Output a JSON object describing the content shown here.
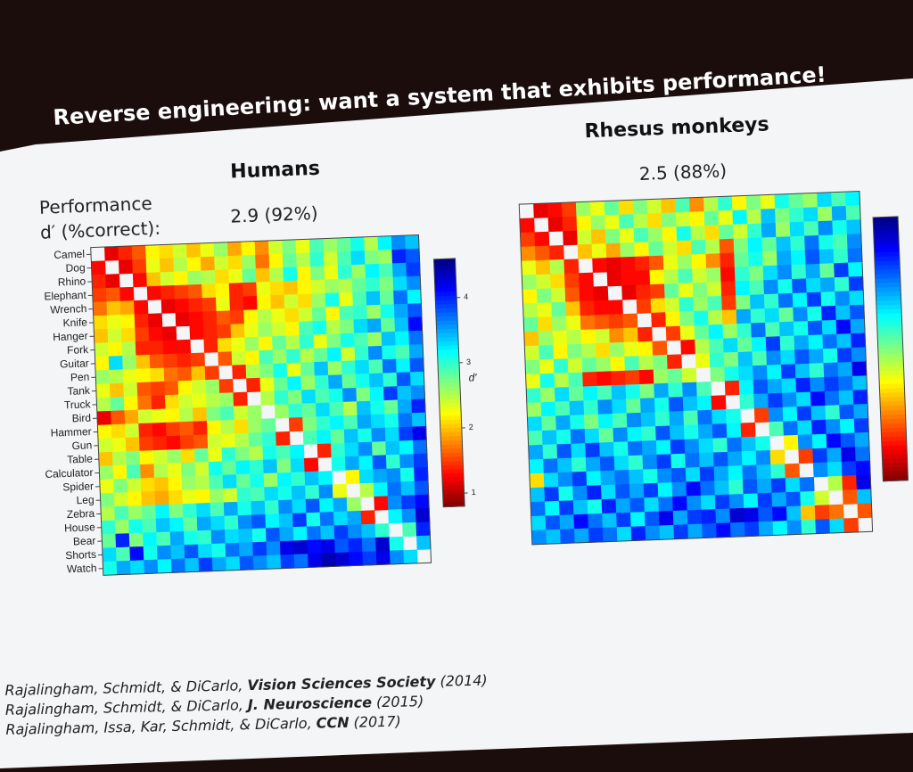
{
  "slide": {
    "title": "Reverse engineering: want a system that exhibits performance!",
    "performance_label": [
      "Performance",
      "d′ (%correct):"
    ],
    "references": [
      {
        "authors": "Rajalingham, Schmidt, & DiCarlo,",
        "venue": "Vision Sciences Society",
        "year": "(2014)"
      },
      {
        "authors": "Rajalingham, Schmidt, & DiCarlo,",
        "venue": "J. Neuroscience",
        "year": "(2015)"
      },
      {
        "authors": "Rajalingham, Issa, Kar, Schmidt, & DiCarlo,",
        "venue": "CCN",
        "year": "(2017)"
      }
    ]
  },
  "chart_data": [
    {
      "type": "heatmap",
      "title": "Humans",
      "subtitle": "2.9 (92%)",
      "categories": [
        "Camel",
        "Dog",
        "Rhino",
        "Elephant",
        "Wrench",
        "Knife",
        "Hanger",
        "Fork",
        "Guitar",
        "Pen",
        "Tank",
        "Truck",
        "Bird",
        "Hammer",
        "Gun",
        "Table",
        "Calculator",
        "Spider",
        "Leg",
        "Zebra",
        "House",
        "Bear",
        "Shorts",
        "Watch"
      ],
      "colormap": "jet_r",
      "clim": [
        0.8,
        4.6
      ],
      "colorbar": {
        "label": "d′",
        "ticks": [
          1,
          2,
          3,
          4
        ]
      },
      "values": [
        [
          null,
          1.2,
          1.4,
          1.6,
          2.2,
          2.1,
          2.4,
          2.0,
          2.3,
          2.6,
          1.9,
          2.2,
          1.8,
          2.4,
          2.7,
          2.3,
          2.9,
          2.6,
          2.8,
          3.1,
          2.5,
          3.2,
          3.6,
          3.4
        ],
        [
          1.3,
          null,
          1.2,
          1.5,
          2.3,
          2.0,
          2.5,
          2.2,
          1.9,
          2.4,
          2.1,
          2.6,
          1.7,
          2.2,
          2.8,
          2.5,
          3.0,
          2.4,
          2.9,
          3.3,
          2.7,
          2.6,
          4.0,
          3.8
        ],
        [
          1.4,
          1.2,
          null,
          1.3,
          2.0,
          2.4,
          2.2,
          2.6,
          2.5,
          2.1,
          2.3,
          2.8,
          2.0,
          2.5,
          3.1,
          2.2,
          2.7,
          2.3,
          3.0,
          2.6,
          3.2,
          2.9,
          3.5,
          3.9
        ],
        [
          1.5,
          1.6,
          1.3,
          null,
          1.3,
          1.4,
          1.5,
          1.6,
          2.1,
          2.2,
          1.4,
          1.5,
          2.3,
          2.1,
          2.0,
          2.2,
          2.4,
          2.6,
          2.5,
          2.8,
          3.0,
          2.7,
          3.3,
          3.6
        ],
        [
          1.7,
          2.0,
          1.9,
          1.3,
          null,
          1.2,
          1.3,
          1.4,
          1.5,
          2.3,
          1.4,
          1.3,
          2.2,
          2.0,
          2.4,
          2.1,
          2.6,
          3.1,
          2.3,
          2.9,
          3.4,
          2.8,
          3.7,
          3.2
        ],
        [
          2.1,
          2.3,
          2.2,
          1.4,
          1.2,
          null,
          1.2,
          1.3,
          1.4,
          1.6,
          1.5,
          2.2,
          2.5,
          2.3,
          2.1,
          2.4,
          2.8,
          2.2,
          2.9,
          3.0,
          2.6,
          3.1,
          3.5,
          3.8
        ],
        [
          2.0,
          2.4,
          2.1,
          1.5,
          1.3,
          1.2,
          null,
          1.3,
          1.4,
          1.5,
          2.0,
          2.3,
          2.6,
          2.4,
          2.2,
          2.9,
          3.1,
          2.5,
          2.7,
          3.3,
          3.5,
          2.8,
          3.4,
          4.1
        ],
        [
          2.4,
          2.2,
          2.5,
          1.4,
          1.4,
          1.3,
          1.3,
          null,
          1.4,
          2.1,
          2.3,
          2.6,
          2.2,
          2.8,
          2.5,
          3.0,
          2.3,
          2.7,
          3.1,
          2.9,
          2.6,
          3.4,
          3.2,
          3.7
        ],
        [
          2.2,
          3.3,
          2.6,
          2.0,
          1.6,
          1.5,
          1.4,
          1.5,
          null,
          1.6,
          2.4,
          2.2,
          2.9,
          2.6,
          3.0,
          2.5,
          2.8,
          3.2,
          2.4,
          3.0,
          3.6,
          3.1,
          2.9,
          3.5
        ],
        [
          2.6,
          2.5,
          2.3,
          2.2,
          2.1,
          1.7,
          1.6,
          2.0,
          1.5,
          null,
          1.4,
          2.5,
          2.7,
          3.1,
          2.3,
          2.8,
          3.4,
          2.6,
          3.0,
          3.3,
          2.9,
          3.7,
          3.2,
          3.8
        ],
        [
          2.3,
          2.0,
          2.4,
          1.6,
          1.5,
          1.6,
          2.2,
          2.4,
          2.6,
          1.5,
          null,
          1.4,
          2.3,
          2.8,
          3.2,
          2.6,
          3.0,
          3.5,
          2.8,
          3.1,
          3.4,
          3.0,
          3.8,
          3.3
        ],
        [
          2.5,
          2.8,
          2.2,
          1.7,
          1.4,
          2.1,
          2.4,
          2.3,
          2.5,
          2.6,
          1.4,
          null,
          2.5,
          3.0,
          2.7,
          3.3,
          2.9,
          3.1,
          3.6,
          2.7,
          3.2,
          3.9,
          3.4,
          3.6
        ],
        [
          1.2,
          1.6,
          1.9,
          2.4,
          2.3,
          2.2,
          2.5,
          2.0,
          2.7,
          2.9,
          2.4,
          2.6,
          null,
          2.6,
          3.0,
          2.8,
          3.3,
          2.9,
          2.5,
          3.4,
          3.1,
          2.8,
          3.5,
          4.0
        ],
        [
          2.2,
          2.1,
          2.4,
          1.4,
          1.3,
          1.5,
          1.6,
          1.4,
          2.2,
          2.5,
          2.1,
          2.6,
          2.8,
          null,
          1.5,
          2.7,
          3.0,
          3.2,
          2.9,
          3.5,
          3.3,
          3.1,
          3.7,
          3.4
        ],
        [
          2.4,
          2.3,
          2.0,
          1.5,
          1.4,
          1.3,
          1.5,
          1.6,
          2.4,
          2.3,
          2.5,
          2.8,
          3.0,
          1.4,
          null,
          2.9,
          3.2,
          2.8,
          3.4,
          3.1,
          3.6,
          3.3,
          3.9,
          4.2
        ],
        [
          2.0,
          2.5,
          2.7,
          2.2,
          2.4,
          2.6,
          2.1,
          2.8,
          2.3,
          3.0,
          2.7,
          2.5,
          3.1,
          2.9,
          3.2,
          null,
          1.4,
          3.0,
          3.3,
          3.6,
          2.8,
          3.4,
          3.2,
          3.7
        ],
        [
          2.6,
          2.2,
          2.9,
          1.8,
          2.5,
          2.3,
          2.7,
          2.4,
          3.1,
          2.8,
          3.2,
          3.0,
          3.4,
          2.7,
          3.3,
          1.3,
          null,
          3.1,
          3.5,
          3.2,
          3.8,
          3.0,
          3.6,
          3.9
        ],
        [
          2.3,
          2.7,
          2.4,
          2.1,
          2.0,
          2.2,
          2.6,
          2.5,
          2.9,
          3.3,
          2.8,
          3.1,
          2.6,
          3.2,
          3.0,
          3.4,
          3.2,
          null,
          2.2,
          3.3,
          3.5,
          3.6,
          3.1,
          4.0
        ],
        [
          2.7,
          2.4,
          2.2,
          2.0,
          1.9,
          2.1,
          2.3,
          2.2,
          2.6,
          2.4,
          3.0,
          2.9,
          3.3,
          3.1,
          3.4,
          3.0,
          3.6,
          2.3,
          null,
          2.5,
          3.2,
          3.7,
          3.4,
          3.8
        ],
        [
          2.5,
          2.9,
          2.6,
          2.8,
          3.2,
          2.7,
          3.0,
          3.3,
          2.9,
          3.5,
          3.1,
          3.4,
          3.0,
          3.6,
          3.3,
          3.8,
          3.2,
          3.5,
          2.6,
          null,
          1.3,
          3.6,
          3.9,
          4.1
        ],
        [
          3.0,
          2.6,
          3.1,
          2.9,
          3.4,
          3.2,
          2.8,
          3.5,
          3.3,
          3.0,
          3.6,
          3.8,
          3.2,
          3.4,
          3.9,
          3.1,
          3.7,
          3.3,
          3.5,
          1.4,
          null,
          3.2,
          3.6,
          4.3
        ],
        [
          2.8,
          4.0,
          2.7,
          3.2,
          2.9,
          3.5,
          3.1,
          3.0,
          3.6,
          3.3,
          3.4,
          3.1,
          3.8,
          3.5,
          3.2,
          3.7,
          3.4,
          3.9,
          3.6,
          3.4,
          3.0,
          null,
          2.9,
          4.0
        ],
        [
          3.3,
          2.9,
          4.1,
          3.1,
          3.6,
          3.4,
          3.8,
          3.3,
          3.1,
          3.7,
          3.5,
          3.9,
          3.6,
          4.2,
          4.3,
          4.1,
          4.2,
          3.8,
          4.0,
          3.7,
          4.3,
          3.1,
          null,
          3.4
        ],
        [
          3.1,
          3.5,
          3.3,
          3.6,
          3.2,
          3.7,
          3.4,
          3.9,
          3.5,
          3.3,
          3.8,
          3.6,
          3.4,
          3.9,
          3.7,
          4.2,
          4.4,
          4.3,
          4.1,
          3.9,
          4.2,
          3.6,
          3.3,
          null
        ]
      ]
    },
    {
      "type": "heatmap",
      "title": "Rhesus monkeys",
      "subtitle": "2.5 (88%)",
      "colormap": "jet_r",
      "clim": [
        0.8,
        4.6
      ],
      "values": [
        [
          null,
          1.2,
          1.3,
          1.5,
          2.6,
          2.3,
          2.8,
          2.1,
          2.7,
          2.4,
          2.0,
          2.9,
          1.8,
          2.5,
          3.0,
          2.2,
          2.7,
          2.3,
          3.1,
          2.8,
          2.6,
          3.3,
          2.9,
          3.2
        ],
        [
          1.3,
          null,
          1.2,
          1.4,
          2.2,
          2.6,
          2.3,
          2.9,
          2.5,
          2.1,
          2.7,
          2.4,
          2.2,
          2.8,
          2.3,
          3.2,
          2.5,
          3.4,
          2.7,
          3.0,
          3.3,
          2.6,
          3.5,
          2.9
        ],
        [
          1.5,
          1.3,
          null,
          1.2,
          2.4,
          2.0,
          2.7,
          2.3,
          2.9,
          2.6,
          2.2,
          3.1,
          2.5,
          2.1,
          2.8,
          2.4,
          3.0,
          3.5,
          2.6,
          3.3,
          2.9,
          3.6,
          3.1,
          3.4
        ],
        [
          1.8,
          1.6,
          1.4,
          null,
          2.0,
          2.3,
          1.9,
          2.6,
          2.2,
          2.8,
          2.4,
          2.1,
          2.9,
          2.5,
          1.6,
          2.7,
          3.2,
          2.8,
          3.4,
          3.0,
          3.7,
          3.1,
          2.9,
          3.6
        ],
        [
          2.3,
          2.0,
          2.5,
          1.4,
          null,
          1.3,
          1.2,
          1.3,
          1.4,
          1.6,
          2.3,
          2.6,
          2.2,
          1.8,
          1.4,
          2.8,
          3.1,
          2.6,
          3.5,
          3.2,
          3.8,
          3.4,
          3.0,
          3.7
        ],
        [
          2.6,
          2.4,
          2.1,
          1.5,
          1.3,
          null,
          1.2,
          1.3,
          1.3,
          2.2,
          2.5,
          2.9,
          2.4,
          2.6,
          1.3,
          3.0,
          2.7,
          3.3,
          3.6,
          3.0,
          3.5,
          2.8,
          3.9,
          3.2
        ],
        [
          2.2,
          2.7,
          2.4,
          1.6,
          1.3,
          1.2,
          null,
          1.2,
          1.4,
          1.5,
          2.8,
          2.3,
          2.7,
          2.4,
          1.4,
          3.2,
          2.9,
          3.6,
          3.1,
          3.8,
          3.3,
          3.5,
          3.0,
          3.9
        ],
        [
          2.5,
          2.3,
          2.8,
          2.0,
          1.4,
          1.3,
          1.3,
          null,
          1.5,
          2.1,
          2.4,
          3.0,
          2.6,
          2.9,
          1.5,
          2.7,
          3.4,
          3.0,
          3.7,
          3.2,
          3.9,
          3.1,
          3.6,
          3.3
        ],
        [
          2.8,
          2.1,
          2.6,
          2.3,
          1.7,
          1.6,
          1.5,
          1.6,
          null,
          1.4,
          2.2,
          2.7,
          3.1,
          2.5,
          2.0,
          3.5,
          3.0,
          3.3,
          2.8,
          3.6,
          3.1,
          4.0,
          3.4,
          3.8
        ],
        [
          2.0,
          2.6,
          2.3,
          2.5,
          2.2,
          2.4,
          1.8,
          2.0,
          1.4,
          null,
          1.5,
          2.3,
          2.8,
          3.2,
          2.6,
          3.0,
          3.7,
          2.9,
          3.4,
          3.1,
          3.8,
          3.3,
          4.1,
          3.5
        ],
        [
          2.4,
          2.9,
          2.2,
          2.7,
          2.5,
          2.1,
          2.6,
          2.3,
          2.2,
          1.6,
          null,
          1.3,
          2.5,
          2.9,
          3.3,
          2.8,
          3.2,
          3.9,
          3.0,
          3.5,
          3.2,
          3.7,
          3.4,
          4.0
        ],
        [
          2.7,
          2.3,
          3.0,
          2.4,
          2.8,
          2.6,
          2.2,
          2.9,
          2.5,
          2.7,
          1.4,
          null,
          2.3,
          3.0,
          2.7,
          3.4,
          2.9,
          3.6,
          3.3,
          3.8,
          3.5,
          3.1,
          3.9,
          3.6
        ],
        [
          2.3,
          3.1,
          2.5,
          2.9,
          1.4,
          1.3,
          1.4,
          1.5,
          1.3,
          2.6,
          2.8,
          2.4,
          null,
          2.7,
          3.1,
          3.3,
          3.6,
          3.2,
          3.9,
          3.4,
          3.0,
          3.7,
          3.5,
          4.2
        ],
        [
          3.0,
          2.6,
          3.3,
          2.8,
          3.2,
          2.9,
          3.4,
          3.1,
          2.7,
          3.5,
          3.0,
          3.6,
          2.9,
          null,
          1.4,
          3.2,
          3.8,
          3.5,
          3.3,
          4.0,
          3.6,
          3.9,
          3.7,
          3.4
        ],
        [
          2.6,
          3.2,
          2.9,
          3.4,
          3.0,
          3.6,
          3.3,
          2.8,
          3.5,
          3.1,
          3.8,
          3.4,
          3.2,
          1.3,
          null,
          3.0,
          3.5,
          3.9,
          3.6,
          3.3,
          4.1,
          3.7,
          3.4,
          4.0
        ],
        [
          3.3,
          2.8,
          3.5,
          3.1,
          2.7,
          3.2,
          2.9,
          3.6,
          3.4,
          3.0,
          3.5,
          2.9,
          3.7,
          3.3,
          3.1,
          null,
          1.5,
          3.6,
          3.2,
          3.9,
          3.4,
          3.0,
          3.8,
          3.5
        ],
        [
          2.9,
          3.4,
          3.1,
          3.7,
          3.3,
          2.8,
          3.6,
          3.2,
          3.0,
          3.8,
          3.4,
          3.1,
          3.5,
          3.8,
          3.2,
          1.4,
          null,
          2.9,
          3.7,
          3.3,
          4.0,
          3.6,
          3.2,
          3.9
        ],
        [
          3.5,
          3.0,
          3.8,
          3.3,
          3.9,
          3.4,
          3.1,
          3.7,
          3.5,
          3.2,
          3.9,
          3.6,
          3.3,
          3.0,
          3.7,
          3.4,
          3.1,
          null,
          2.2,
          3.6,
          3.2,
          4.1,
          3.8,
          3.5
        ],
        [
          3.2,
          3.7,
          3.4,
          3.0,
          3.5,
          3.8,
          3.3,
          3.0,
          3.6,
          3.9,
          3.1,
          3.7,
          3.4,
          3.8,
          3.5,
          3.2,
          3.6,
          2.1,
          null,
          1.5,
          3.9,
          3.5,
          4.2,
          3.7
        ],
        [
          2.1,
          3.3,
          3.6,
          3.9,
          3.2,
          3.5,
          3.7,
          3.4,
          3.1,
          3.6,
          3.8,
          3.3,
          3.9,
          3.5,
          3.2,
          3.7,
          3.4,
          3.0,
          1.6,
          null,
          3.6,
          3.3,
          3.9,
          4.1
        ],
        [
          3.4,
          3.9,
          3.1,
          3.6,
          4.0,
          3.3,
          3.8,
          3.5,
          3.9,
          3.2,
          3.6,
          4.1,
          3.7,
          3.4,
          3.0,
          3.8,
          3.5,
          3.9,
          3.3,
          3.7,
          null,
          2.5,
          1.4,
          4.2
        ],
        [
          3.7,
          3.2,
          3.9,
          3.4,
          3.1,
          4.0,
          3.5,
          3.8,
          3.3,
          3.7,
          4.1,
          3.6,
          3.3,
          3.9,
          3.6,
          3.2,
          3.9,
          3.5,
          3.8,
          3.1,
          2.4,
          null,
          1.6,
          3.4
        ],
        [
          3.3,
          3.8,
          3.5,
          4.1,
          3.7,
          3.4,
          3.9,
          3.2,
          3.8,
          4.2,
          3.5,
          3.9,
          4.0,
          3.6,
          4.3,
          4.2,
          3.8,
          4.1,
          3.4,
          2.0,
          1.5,
          1.7,
          null,
          1.6
        ],
        [
          3.6,
          3.4,
          3.8,
          3.5,
          3.9,
          3.7,
          3.3,
          4.0,
          3.6,
          3.4,
          3.9,
          3.5,
          3.8,
          4.1,
          3.7,
          3.9,
          3.5,
          3.2,
          3.6,
          3.0,
          3.8,
          3.3,
          1.5,
          null
        ]
      ]
    }
  ]
}
